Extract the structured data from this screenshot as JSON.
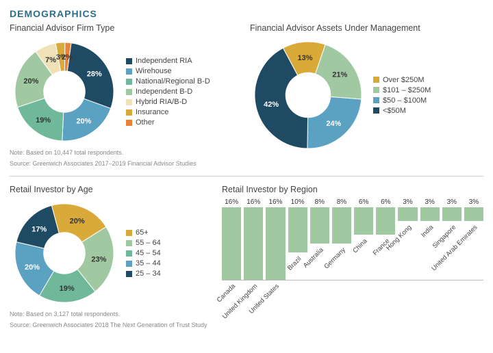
{
  "page_title": "DEMOGRAPHICS",
  "title_color": "#2b6e8c",
  "divider_color": "#d0d0d0",
  "firm_type": {
    "title": "Financial Advisor Firm Type",
    "type": "donut",
    "inner_radius": 0.42,
    "slices": [
      {
        "label": "Independent RIA",
        "value": 28,
        "color": "#1f4a63"
      },
      {
        "label": "Wirehouse",
        "value": 20,
        "color": "#5ba1c2"
      },
      {
        "label": "National/Regional B-D",
        "value": 19,
        "color": "#6fb89a"
      },
      {
        "label": "Independent B-D",
        "value": 20,
        "color": "#a1c9a1"
      },
      {
        "label": "Hybrid RIA/B-D",
        "value": 7,
        "color": "#f0e2b8"
      },
      {
        "label": "Insurance",
        "value": 3,
        "color": "#d9a93a"
      },
      {
        "label": "Other",
        "value": 2,
        "color": "#e8833a"
      }
    ],
    "note1": "Note: Based on 10,447 total respondents.",
    "note2": "Source: Greenwich Associates 2017–2019 Financial Advisor Studies",
    "label_fontsize": 11
  },
  "aum": {
    "title": "Financial Advisor Assets Under Management",
    "type": "donut",
    "inner_radius": 0.42,
    "slices": [
      {
        "label": "Over $250M",
        "value": 13,
        "color": "#d9a93a"
      },
      {
        "label": "$101 – $250M",
        "value": 21,
        "color": "#a1c9a1"
      },
      {
        "label": "$50 – $100M",
        "value": 24,
        "color": "#5ba1c2"
      },
      {
        "label": "<$50M",
        "value": 42,
        "color": "#1f4a63"
      }
    ],
    "label_fontsize": 11
  },
  "age": {
    "title": "Retail Investor by Age",
    "type": "donut",
    "inner_radius": 0.42,
    "slices": [
      {
        "label": "65+",
        "value": 20,
        "color": "#d9a93a"
      },
      {
        "label": "55 – 64",
        "value": 23,
        "color": "#a1c9a1"
      },
      {
        "label": "45 – 54",
        "value": 19,
        "color": "#6fb89a"
      },
      {
        "label": "35 – 44",
        "value": 20,
        "color": "#5ba1c2"
      },
      {
        "label": "25 – 34",
        "value": 17,
        "color": "#1f4a63"
      }
    ],
    "note1": "Note: Based on 3,127 total respondents.",
    "note2": "Source: Greenwich Associates 2018 The Next Generation of Trust Study",
    "label_fontsize": 11
  },
  "region": {
    "title": "Retail Investor by Region",
    "type": "bar",
    "bar_color": "#a1c9a1",
    "label_color": "#333333",
    "label_fontsize": 10,
    "cat_fontsize": 9.5,
    "ymax": 18,
    "categories": [
      "Canada",
      "United Kingdom",
      "United States",
      "Brazil",
      "Australia",
      "Germany",
      "China",
      "France",
      "Hong Kong",
      "India",
      "Singapore",
      "United Arab Emirates"
    ],
    "values": [
      16,
      16,
      16,
      10,
      8,
      8,
      6,
      6,
      3,
      3,
      3,
      3
    ]
  }
}
